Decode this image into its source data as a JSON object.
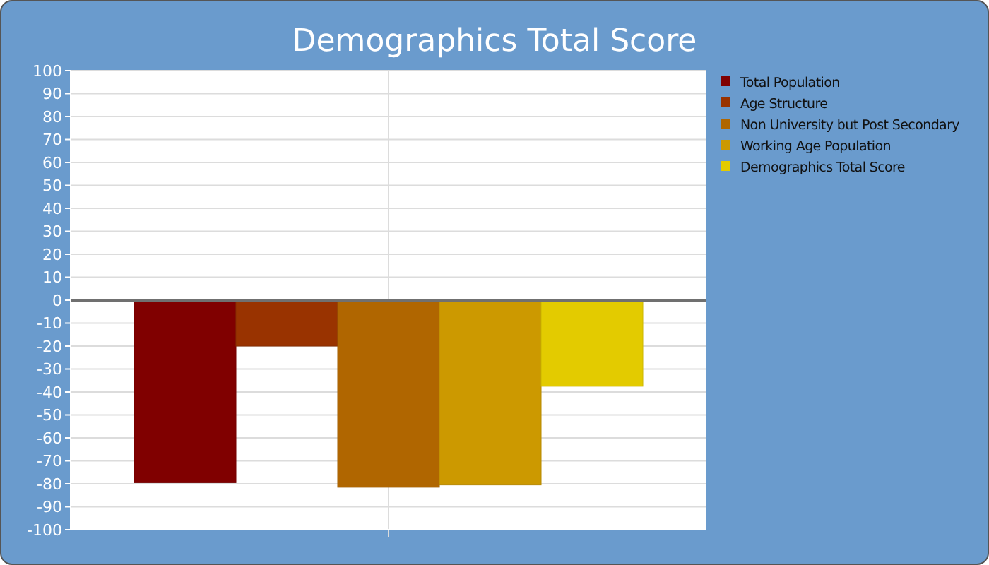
{
  "chart_data": {
    "type": "bar",
    "title": "Demographics Total Score",
    "categories": [
      null
    ],
    "series": [
      {
        "name": "Total Population",
        "color": "#800000",
        "values": [
          -79.5
        ]
      },
      {
        "name": "Age Structure",
        "color": "#993300",
        "values": [
          -20
        ]
      },
      {
        "name": "Non University but Post Secondary",
        "color": "#b06600",
        "values": [
          -81.5
        ]
      },
      {
        "name": "Working Age Population",
        "color": "#cc9900",
        "values": [
          -80.5
        ]
      },
      {
        "name": "Demographics Total Score",
        "color": "#e3cb00",
        "values": [
          -37.5
        ]
      }
    ],
    "ylim": [
      -100,
      100
    ],
    "yticks": [
      -100,
      -90,
      -80,
      -70,
      -60,
      -50,
      -40,
      -30,
      -20,
      -10,
      0,
      10,
      20,
      30,
      40,
      50,
      60,
      70,
      80,
      90,
      100
    ],
    "grid": true,
    "legend": "right",
    "ref_lines": [
      {
        "axis": "y",
        "value": 0,
        "color": "#707070"
      }
    ]
  }
}
